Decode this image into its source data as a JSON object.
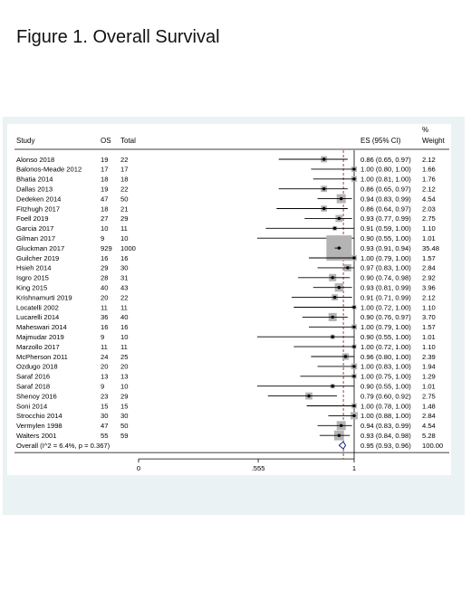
{
  "figure_title": "Figure 1. Overall Survival",
  "chart_data": {
    "type": "forest",
    "columns": {
      "study": "Study",
      "os": "OS",
      "total": "Total",
      "es": "ES (95% CI)",
      "weight_top": "%",
      "weight_bottom": "Weight"
    },
    "x_ticks": [
      {
        "value": 0,
        "label": "0"
      },
      {
        "value": 0.555,
        "label": ".555"
      },
      {
        "value": 1,
        "label": "1"
      }
    ],
    "xlim": [
      0,
      1
    ],
    "reference_line": 1,
    "overall_line": 0.95,
    "studies": [
      {
        "study": "Alonso 2018",
        "os": "19",
        "total": "22",
        "es": 0.86,
        "lo": 0.65,
        "hi": 0.97,
        "es_text": "0.86 (0.65, 0.97)",
        "weight": "2.12"
      },
      {
        "study": "Balonos-Meade 2012",
        "os": "17",
        "total": "17",
        "es": 1.0,
        "lo": 0.8,
        "hi": 1.0,
        "es_text": "1.00 (0.80, 1.00)",
        "weight": "1.66"
      },
      {
        "study": "Bhatia 2014",
        "os": "18",
        "total": "18",
        "es": 1.0,
        "lo": 0.81,
        "hi": 1.0,
        "es_text": "1.00 (0.81, 1.00)",
        "weight": "1.76"
      },
      {
        "study": "Dallas 2013",
        "os": "19",
        "total": "22",
        "es": 0.86,
        "lo": 0.65,
        "hi": 0.97,
        "es_text": "0.86 (0.65, 0.97)",
        "weight": "2.12"
      },
      {
        "study": "Dedeken 2014",
        "os": "47",
        "total": "50",
        "es": 0.94,
        "lo": 0.83,
        "hi": 0.99,
        "es_text": "0.94 (0.83, 0.99)",
        "weight": "4.54"
      },
      {
        "study": "Fitzhugh 2017",
        "os": "18",
        "total": "21",
        "es": 0.86,
        "lo": 0.64,
        "hi": 0.97,
        "es_text": "0.86 (0.64, 0.97)",
        "weight": "2.03"
      },
      {
        "study": "Foell 2019",
        "os": "27",
        "total": "29",
        "es": 0.93,
        "lo": 0.77,
        "hi": 0.99,
        "es_text": "0.93 (0.77, 0.99)",
        "weight": "2.75"
      },
      {
        "study": "Garcia 2017",
        "os": "10",
        "total": "11",
        "es": 0.91,
        "lo": 0.59,
        "hi": 1.0,
        "es_text": "0.91 (0.59, 1.00)",
        "weight": "1.10"
      },
      {
        "study": "Gilman 2017",
        "os": "9",
        "total": "10",
        "es": 0.9,
        "lo": 0.55,
        "hi": 1.0,
        "es_text": "0.90 (0.55, 1.00)",
        "weight": "1.01"
      },
      {
        "study": "Gluckman 2017",
        "os": "929",
        "total": "1000",
        "es": 0.93,
        "lo": 0.91,
        "hi": 0.94,
        "es_text": "0.93 (0.91, 0.94)",
        "weight": "35.48"
      },
      {
        "study": "Guilcher 2019",
        "os": "16",
        "total": "16",
        "es": 1.0,
        "lo": 0.79,
        "hi": 1.0,
        "es_text": "1.00 (0.79, 1.00)",
        "weight": "1.57"
      },
      {
        "study": "Hsieh 2014",
        "os": "29",
        "total": "30",
        "es": 0.97,
        "lo": 0.83,
        "hi": 1.0,
        "es_text": "0.97 (0.83, 1.00)",
        "weight": "2.84"
      },
      {
        "study": "Isgro 2015",
        "os": "28",
        "total": "31",
        "es": 0.9,
        "lo": 0.74,
        "hi": 0.98,
        "es_text": "0.90 (0.74, 0.98)",
        "weight": "2.92"
      },
      {
        "study": "King 2015",
        "os": "40",
        "total": "43",
        "es": 0.93,
        "lo": 0.81,
        "hi": 0.99,
        "es_text": "0.93 (0.81, 0.99)",
        "weight": "3.96"
      },
      {
        "study": "Krishnamurti 2019",
        "os": "20",
        "total": "22",
        "es": 0.91,
        "lo": 0.71,
        "hi": 0.99,
        "es_text": "0.91 (0.71, 0.99)",
        "weight": "2.12"
      },
      {
        "study": "Locatelli 2002",
        "os": "11",
        "total": "11",
        "es": 1.0,
        "lo": 0.72,
        "hi": 1.0,
        "es_text": "1.00 (0.72, 1.00)",
        "weight": "1.10"
      },
      {
        "study": "Lucarelli 2014",
        "os": "36",
        "total": "40",
        "es": 0.9,
        "lo": 0.76,
        "hi": 0.97,
        "es_text": "0.90 (0.76, 0.97)",
        "weight": "3.70"
      },
      {
        "study": "Maheswari 2014",
        "os": "16",
        "total": "16",
        "es": 1.0,
        "lo": 0.79,
        "hi": 1.0,
        "es_text": "1.00 (0.79, 1.00)",
        "weight": "1.57"
      },
      {
        "study": "Majmudar 2019",
        "os": "9",
        "total": "10",
        "es": 0.9,
        "lo": 0.55,
        "hi": 1.0,
        "es_text": "0.90 (0.55, 1.00)",
        "weight": "1.01"
      },
      {
        "study": "Marzollo 2017",
        "os": "11",
        "total": "11",
        "es": 1.0,
        "lo": 0.72,
        "hi": 1.0,
        "es_text": "1.00 (0.72, 1.00)",
        "weight": "1.10"
      },
      {
        "study": "McPherson 2011",
        "os": "24",
        "total": "25",
        "es": 0.96,
        "lo": 0.8,
        "hi": 1.0,
        "es_text": "0.96 (0.80, 1.00)",
        "weight": "2.39"
      },
      {
        "study": "Ozdugo 2018",
        "os": "20",
        "total": "20",
        "es": 1.0,
        "lo": 0.83,
        "hi": 1.0,
        "es_text": "1.00 (0.83, 1.00)",
        "weight": "1.94"
      },
      {
        "study": "Saraf 2016",
        "os": "13",
        "total": "13",
        "es": 1.0,
        "lo": 0.75,
        "hi": 1.0,
        "es_text": "1.00 (0.75, 1.00)",
        "weight": "1.29"
      },
      {
        "study": "Saraf 2018",
        "os": "9",
        "total": "10",
        "es": 0.9,
        "lo": 0.55,
        "hi": 1.0,
        "es_text": "0.90 (0.55, 1.00)",
        "weight": "1.01"
      },
      {
        "study": "Shenoy 2016",
        "os": "23",
        "total": "29",
        "es": 0.79,
        "lo": 0.6,
        "hi": 0.92,
        "es_text": "0.79 (0.60, 0.92)",
        "weight": "2.75"
      },
      {
        "study": "Soni 2014",
        "os": "15",
        "total": "15",
        "es": 1.0,
        "lo": 0.78,
        "hi": 1.0,
        "es_text": "1.00 (0.78, 1.00)",
        "weight": "1.48"
      },
      {
        "study": "Strocchio 2014",
        "os": "30",
        "total": "30",
        "es": 1.0,
        "lo": 0.88,
        "hi": 1.0,
        "es_text": "1.00 (0.88, 1.00)",
        "weight": "2.84"
      },
      {
        "study": "Vermylen 1998",
        "os": "47",
        "total": "50",
        "es": 0.94,
        "lo": 0.83,
        "hi": 0.99,
        "es_text": "0.94 (0.83, 0.99)",
        "weight": "4.54"
      },
      {
        "study": "Walters 2001",
        "os": "55",
        "total": "59",
        "es": 0.93,
        "lo": 0.84,
        "hi": 0.98,
        "es_text": "0.93 (0.84, 0.98)",
        "weight": "5.28"
      }
    ],
    "overall": {
      "label": "Overall  (I^2 = 6.4%, p = 0.367)",
      "es": 0.95,
      "lo": 0.93,
      "hi": 0.96,
      "es_text": "0.95 (0.93, 0.96)",
      "weight": "100.00"
    },
    "colors": {
      "box": "#b4b4b4",
      "line": "#000000",
      "diamond": "#1a237e",
      "ref_line": "#8b1a1a"
    }
  }
}
